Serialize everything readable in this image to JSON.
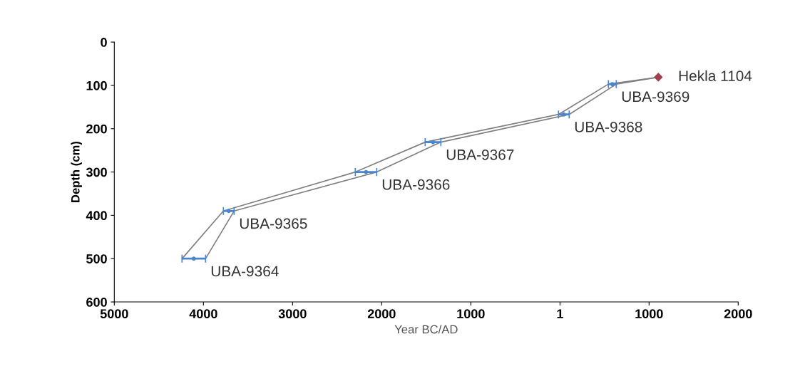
{
  "chart_data": {
    "type": "line",
    "xlabel": "Year BC/AD",
    "ylabel": "Depth (cm)",
    "xlim": [
      -5000,
      2000
    ],
    "ylim": [
      600,
      0
    ],
    "xticks": [
      {
        "value": -5000,
        "label": "5000"
      },
      {
        "value": -4000,
        "label": "4000"
      },
      {
        "value": -3000,
        "label": "3000"
      },
      {
        "value": -2000,
        "label": "2000"
      },
      {
        "value": -1000,
        "label": "1000"
      },
      1,
      1000,
      2000
    ],
    "yticks": [
      0,
      100,
      200,
      300,
      400,
      500,
      600
    ],
    "grid": false,
    "legend": false,
    "series": [
      {
        "color": "#808080",
        "marker": "none",
        "x": [
          1104,
          544,
          -16,
          -1512,
          -2296,
          -3776,
          -4240
        ],
        "values": [
          81,
          97,
          167,
          231,
          300,
          390,
          500
        ]
      },
      {
        "color": "#808080",
        "marker": "none",
        "x": [
          1104,
          632,
          104,
          -1336,
          -2056,
          -3656,
          -3976
        ],
        "values": [
          81,
          97,
          167,
          231,
          300,
          390,
          500
        ]
      },
      {
        "type": "scatter",
        "color": "#4a86d0",
        "marker": "circle",
        "x": [
          -4108,
          -3716,
          -2176,
          -1424,
          44,
          588
        ],
        "values": [
          500,
          390,
          300,
          231,
          167,
          97
        ],
        "xerrors": [
          [
            -4240,
            -3976
          ],
          [
            -3776,
            -3656
          ],
          [
            -2296,
            -2056
          ],
          [
            -1512,
            -1336
          ],
          [
            -16,
            104
          ],
          [
            544,
            632
          ]
        ]
      },
      {
        "type": "scatter",
        "color": "#a0404a",
        "marker": "diamond",
        "x": [
          1104
        ],
        "values": [
          81
        ]
      }
    ],
    "annotations": [
      {
        "text": "Hekla 1104",
        "x": 1104,
        "y": 81
      },
      {
        "text": "UBA-9369",
        "x": 632,
        "y": 97
      },
      {
        "text": "UBA-9368",
        "x": 104,
        "y": 167
      },
      {
        "text": "UBA-9367",
        "x": -1336,
        "y": 231
      },
      {
        "text": "UBA-9366",
        "x": -2056,
        "y": 300
      },
      {
        "text": "UBA-9365",
        "x": -3656,
        "y": 390
      },
      {
        "text": "UBA-9364",
        "x": -3976,
        "y": 500
      }
    ]
  }
}
